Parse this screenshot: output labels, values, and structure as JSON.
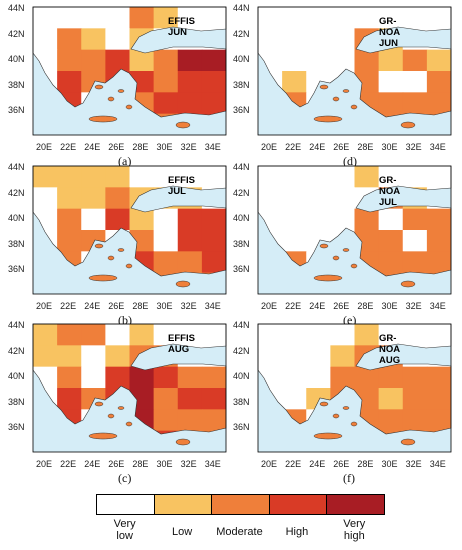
{
  "lat_ticks": [
    "44N",
    "42N",
    "40N",
    "38N",
    "36N"
  ],
  "lon_ticks": [
    "20E",
    "22E",
    "24E",
    "26E",
    "28E",
    "30E",
    "32E",
    "34E"
  ],
  "panels": [
    {
      "id": "a",
      "caption": "(a)",
      "source": "EFFIS",
      "month": "JUN"
    },
    {
      "id": "d",
      "caption": "(d)",
      "source": "GR-NOA",
      "month": "JUN"
    },
    {
      "id": "b",
      "caption": "(b)",
      "source": "EFFIS",
      "month": "JUL"
    },
    {
      "id": "e",
      "caption": "(e)",
      "source": "GR-NOA",
      "month": "JUL"
    },
    {
      "id": "c",
      "caption": "(c)",
      "source": "EFFIS",
      "month": "AUG"
    },
    {
      "id": "f",
      "caption": "(f)",
      "source": "GR-NOA",
      "month": "AUG"
    }
  ],
  "legend": {
    "classes": [
      {
        "label": "Very low",
        "line1": "Very",
        "line2": "low",
        "color": "#ffffff"
      },
      {
        "label": "Low",
        "line1": "Low",
        "line2": "",
        "color": "#f8c361"
      },
      {
        "label": "Moderate",
        "line1": "Moderate",
        "line2": "",
        "color": "#ef7f3a"
      },
      {
        "label": "High",
        "line1": "High",
        "line2": "",
        "color": "#d93b26"
      },
      {
        "label": "Very high",
        "line1": "Very",
        "line2": "high",
        "color": "#a81d24"
      }
    ]
  },
  "colors": {
    "sea": "#d5edf7",
    "very_low": "#ffffff",
    "low": "#f8c361",
    "moderate": "#ef7f3a",
    "high": "#d93b26",
    "very_high": "#a81d24"
  }
}
